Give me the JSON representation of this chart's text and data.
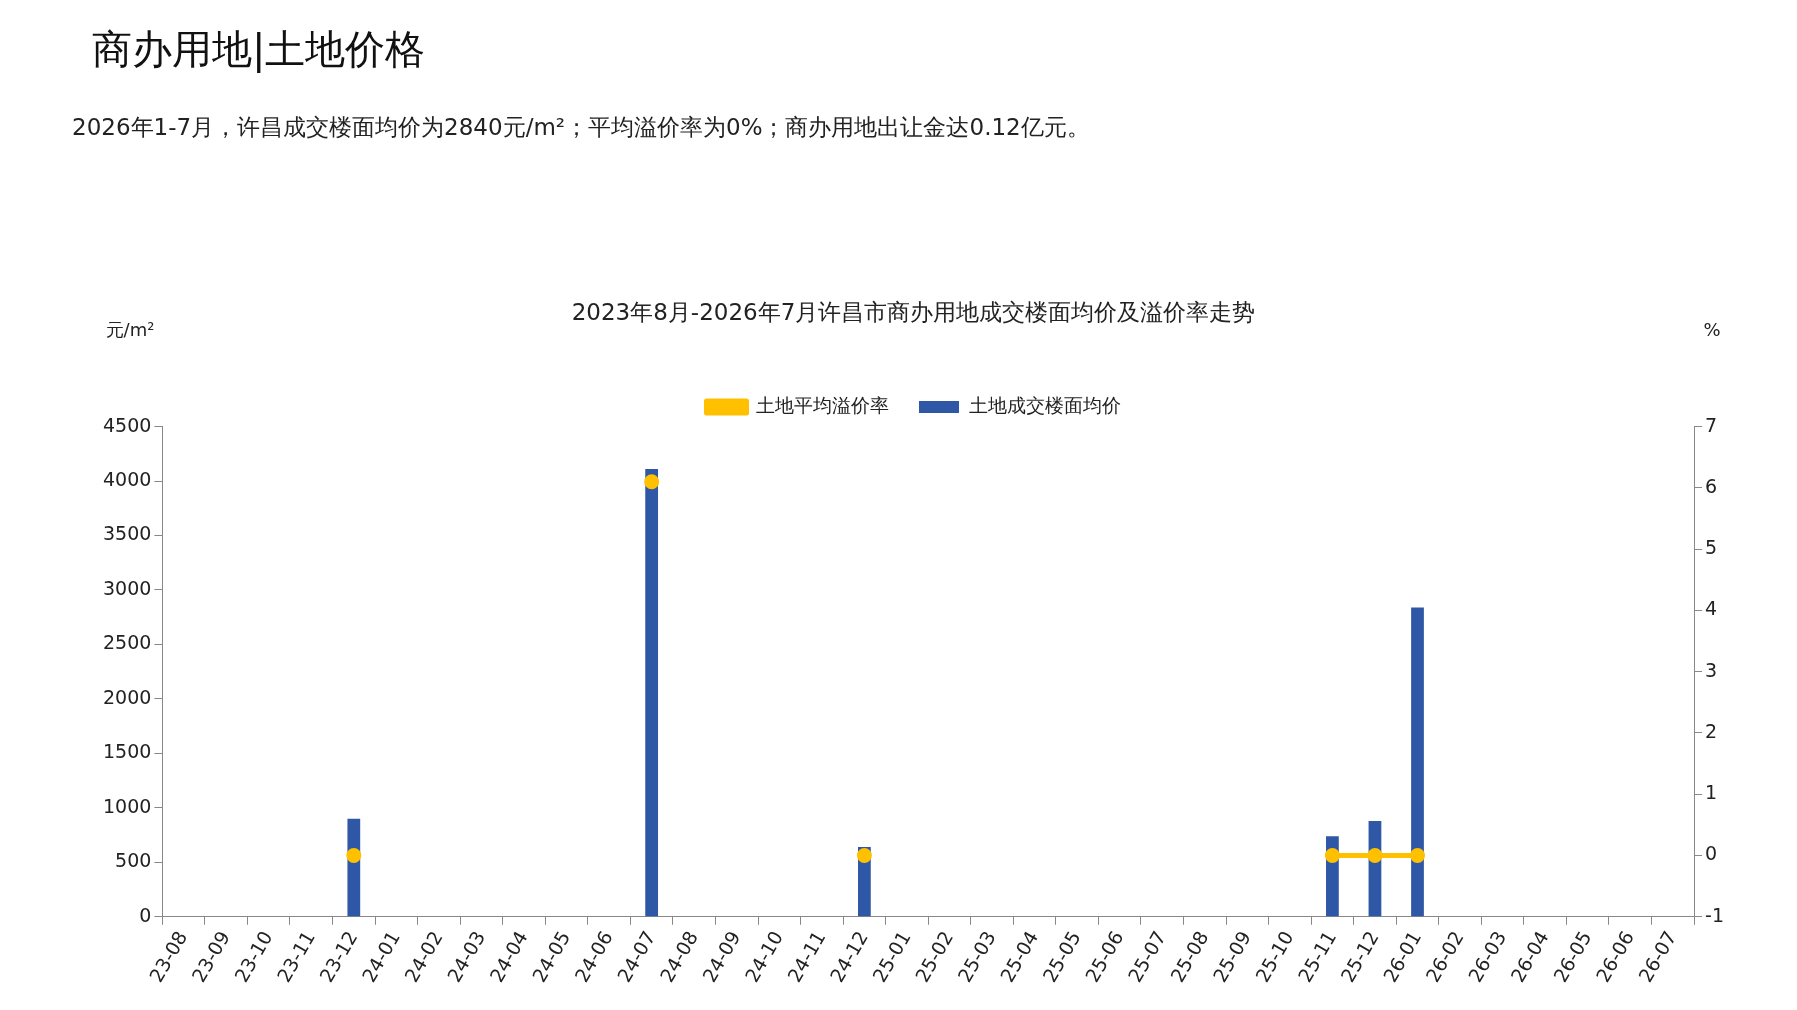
{
  "chart_data": {
    "type": "bar",
    "title": "2023年8月-2026年7月许昌市商办用地成交楼面均价及溢价率走势",
    "annotations": [
      "商办用地|土地价格",
      "2026年1-7月，许昌成交楼面均价为2840元/m²；平均溢价率为0%；商办用地出让金达0.12亿元。"
    ],
    "ylabel": "元/m²",
    "y2label": "%",
    "categories": [
      "23-08",
      "23-09",
      "23-10",
      "23-11",
      "23-12",
      "24-01",
      "24-02",
      "24-03",
      "24-04",
      "24-05",
      "24-06",
      "24-07",
      "24-08",
      "24-09",
      "24-10",
      "24-11",
      "24-12",
      "25-01",
      "25-02",
      "25-03",
      "25-04",
      "25-05",
      "25-06",
      "25-07",
      "25-08",
      "25-09",
      "25-10",
      "25-11",
      "25-12",
      "26-01",
      "26-02",
      "26-03",
      "26-04",
      "26-05",
      "26-06",
      "26-07"
    ],
    "series": [
      {
        "name": "土地成交楼面均价",
        "color": "#2e58a6",
        "values": [
          null,
          null,
          null,
          null,
          900,
          null,
          null,
          null,
          null,
          null,
          null,
          4110,
          null,
          null,
          null,
          null,
          640,
          null,
          null,
          null,
          null,
          null,
          null,
          null,
          null,
          null,
          null,
          740,
          880,
          2840,
          null,
          null,
          null,
          null,
          null,
          null
        ]
      },
      {
        "name": "土地平均溢价率",
        "type": "line",
        "axis": "y2",
        "color": "#ffc000",
        "marker": "circle",
        "values": [
          null,
          null,
          null,
          null,
          0,
          null,
          null,
          null,
          null,
          null,
          null,
          6.1,
          null,
          null,
          null,
          null,
          0,
          null,
          null,
          null,
          null,
          null,
          null,
          null,
          null,
          null,
          null,
          0,
          0,
          0,
          null,
          null,
          null,
          null,
          null,
          null
        ]
      }
    ],
    "ylim": [
      0,
      4500
    ],
    "yticks": [
      0,
      500,
      1000,
      1500,
      2000,
      2500,
      3000,
      3500,
      4000,
      4500
    ],
    "y2lim": [
      -1,
      7
    ],
    "y2ticks": [
      -1,
      0,
      1,
      2,
      3,
      4,
      5,
      6,
      7
    ],
    "legend": "top",
    "grid": false
  }
}
